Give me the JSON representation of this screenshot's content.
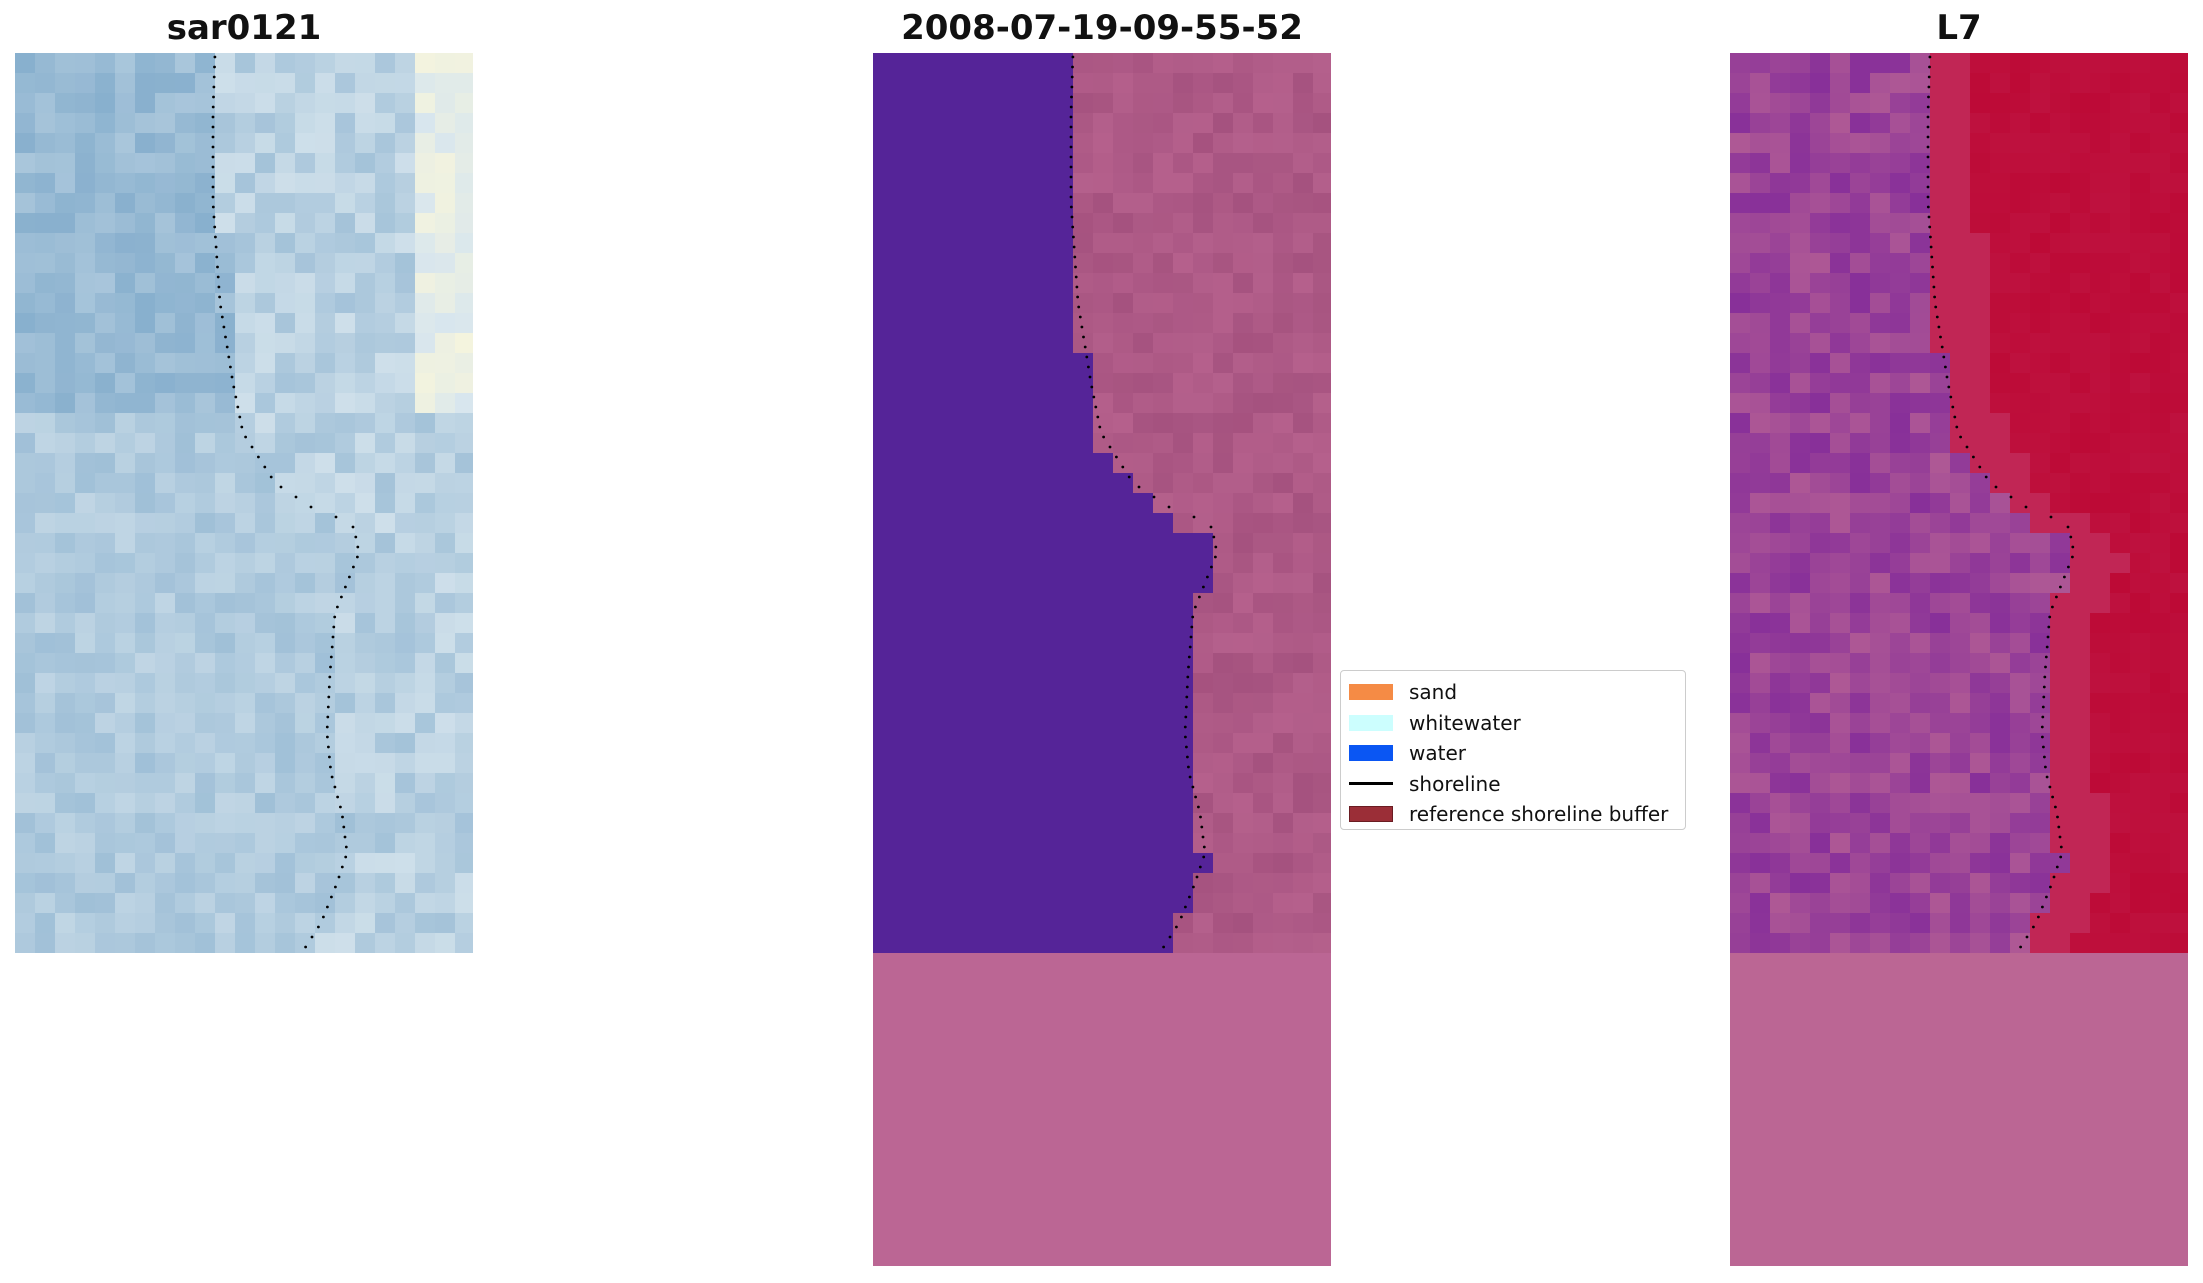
{
  "panels": {
    "rgb": {
      "title": "sar0121"
    },
    "class": {
      "title": "2008-07-19-09-55-52"
    },
    "mndwi": {
      "title": "L7"
    }
  },
  "legend": {
    "items": [
      {
        "label": "sand",
        "color": "#f58b45",
        "kind": "patch"
      },
      {
        "label": "whitewater",
        "color": "#ccfefe",
        "kind": "patch"
      },
      {
        "label": "water",
        "color": "#0a56f3",
        "kind": "patch"
      },
      {
        "label": "shoreline",
        "color": "#000000",
        "kind": "line"
      },
      {
        "label": "reference shoreline buffer",
        "color": "#9b2e37",
        "kind": "patch"
      }
    ]
  },
  "colors": {
    "water_class": "#552498",
    "land_class": "#a5527f",
    "nodata": "#bb6694",
    "mndwi_high": "#bd0a36",
    "mndwi_low": "#7b229a",
    "rgb_blue": "#7aa6c8",
    "rgb_light": "#d8e6ee"
  }
}
